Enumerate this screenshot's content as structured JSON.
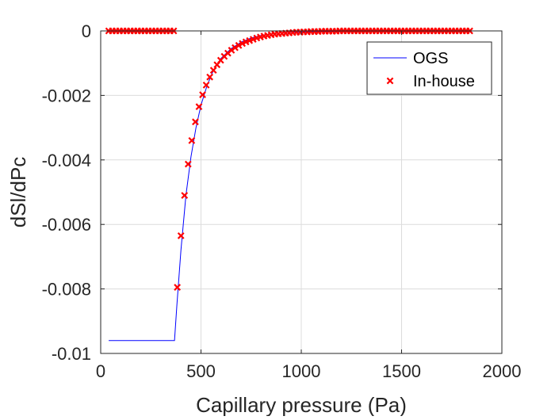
{
  "chart_data": {
    "type": "line",
    "title": "",
    "xlabel": "Capillary pressure (Pa)",
    "ylabel": "dSl/dPc",
    "xlim": [
      0,
      2000
    ],
    "ylim": [
      -0.01,
      0
    ],
    "xticks": [
      0,
      500,
      1000,
      1500,
      2000
    ],
    "xtick_labels": [
      "0",
      "500",
      "1000",
      "1500",
      "2000"
    ],
    "yticks": [
      0,
      -0.002,
      -0.004,
      -0.006,
      -0.008,
      -0.01
    ],
    "ytick_labels": [
      "0",
      "-0.002",
      "-0.004",
      "-0.006",
      "-0.008",
      "-0.01"
    ],
    "grid": true,
    "legend_position": "top-right",
    "series": [
      {
        "name": "OGS",
        "style": "line",
        "color": "#0000ff",
        "x": [
          40,
          100,
          200,
          300,
          368,
          380,
          400,
          425,
          450,
          475,
          500,
          530,
          560,
          600,
          650,
          700,
          750,
          800,
          850,
          900,
          950,
          1000,
          1100,
          1200,
          1300,
          1400,
          1500,
          1600,
          1700,
          1800,
          1850
        ],
        "y": [
          -0.0096,
          -0.0096,
          -0.0096,
          -0.0096,
          -0.0096,
          -0.0085,
          -0.0068,
          -0.0051,
          -0.0039,
          -0.003,
          -0.0023,
          -0.0017,
          -0.00125,
          -0.00085,
          -0.00055,
          -0.00035,
          -0.00022,
          -0.00014,
          -9e-05,
          -6e-05,
          -4e-05,
          -3e-05,
          -1.5e-05,
          -8e-06,
          -4e-06,
          -2e-06,
          -1e-06,
          0,
          0,
          0,
          0
        ]
      },
      {
        "name": "In-house",
        "style": "marker-x",
        "color": "#ff0000",
        "x": [
          40,
          58,
          76,
          94,
          112,
          130,
          148,
          166,
          184,
          202,
          220,
          238,
          256,
          274,
          292,
          310,
          328,
          346,
          364,
          382,
          400,
          418,
          436,
          454,
          472,
          490,
          508,
          526,
          544,
          562,
          580,
          598,
          616,
          634,
          652,
          670,
          688,
          706,
          724,
          742,
          760,
          778,
          796,
          814,
          832,
          850,
          868,
          886,
          904,
          922,
          940,
          958,
          976,
          994,
          1012,
          1030,
          1048,
          1066,
          1084,
          1102,
          1120,
          1138,
          1156,
          1174,
          1192,
          1210,
          1228,
          1246,
          1264,
          1282,
          1300,
          1318,
          1336,
          1354,
          1372,
          1390,
          1408,
          1426,
          1444,
          1462,
          1480,
          1498,
          1516,
          1534,
          1552,
          1570,
          1588,
          1606,
          1624,
          1642,
          1660,
          1678,
          1696,
          1714,
          1732,
          1750,
          1768,
          1786,
          1804,
          1822,
          1840
        ],
        "y": [
          0,
          0,
          0,
          0,
          0,
          0,
          0,
          0,
          0,
          0,
          0,
          0,
          0,
          0,
          0,
          0,
          0,
          0,
          0,
          -0.00795,
          -0.00635,
          -0.0051,
          -0.00413,
          -0.0034,
          -0.00282,
          -0.00235,
          -0.00198,
          -0.00168,
          -0.00143,
          -0.00122,
          -0.00105,
          -0.00091,
          -0.00079,
          -0.00069,
          -0.0006,
          -0.00052,
          -0.00045,
          -0.00039,
          -0.00034,
          -0.0003,
          -0.00026,
          -0.00022,
          -0.00019,
          -0.00016,
          -0.00014,
          -0.00012,
          -0.0001,
          -9e-05,
          -8e-05,
          -7e-05,
          -6e-05,
          -5e-05,
          -4e-05,
          -4e-05,
          -3e-05,
          -3e-05,
          -2e-05,
          -2e-05,
          -2e-05,
          -1e-05,
          -1e-05,
          -1e-05,
          -1e-05,
          -1e-05,
          0,
          0,
          0,
          0,
          0,
          0,
          0,
          0,
          0,
          0,
          0,
          0,
          0,
          0,
          0,
          0,
          0,
          0,
          0,
          0,
          0,
          0,
          0,
          0,
          0,
          0,
          0,
          0,
          0,
          0,
          0,
          0,
          0,
          0,
          0,
          0,
          0
        ]
      }
    ]
  }
}
